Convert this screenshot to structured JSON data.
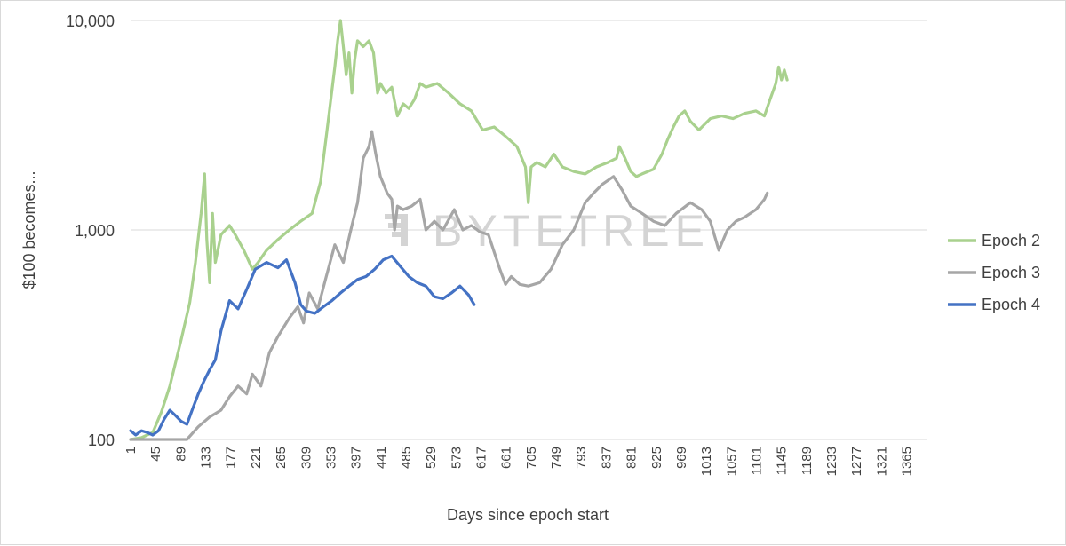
{
  "chart_data": {
    "type": "line",
    "title": "",
    "xlabel": "Days since epoch start",
    "ylabel": "$100 becomes...",
    "yscale": "log",
    "ylim": [
      100,
      10000
    ],
    "xlim": [
      1,
      1400
    ],
    "y_ticks": [
      {
        "value": 100,
        "label": "100"
      },
      {
        "value": 1000,
        "label": "1,000"
      },
      {
        "value": 10000,
        "label": "10,000"
      }
    ],
    "x_ticks": [
      "1",
      "45",
      "89",
      "133",
      "177",
      "221",
      "265",
      "309",
      "353",
      "397",
      "441",
      "485",
      "529",
      "573",
      "617",
      "661",
      "705",
      "749",
      "793",
      "837",
      "881",
      "925",
      "969",
      "1013",
      "1057",
      "1101",
      "1145",
      "1189",
      "1233",
      "1277",
      "1321",
      "1365"
    ],
    "legend_position": "right",
    "watermark": "BYTETREE",
    "series": [
      {
        "name": "Epoch 2",
        "color": "#a9d18e",
        "points": [
          [
            1,
            100
          ],
          [
            20,
            102
          ],
          [
            40,
            108
          ],
          [
            55,
            135
          ],
          [
            70,
            180
          ],
          [
            90,
            300
          ],
          [
            105,
            450
          ],
          [
            115,
            700
          ],
          [
            125,
            1200
          ],
          [
            131,
            1850
          ],
          [
            135,
            900
          ],
          [
            140,
            560
          ],
          [
            145,
            1200
          ],
          [
            150,
            700
          ],
          [
            160,
            950
          ],
          [
            175,
            1050
          ],
          [
            185,
            950
          ],
          [
            200,
            800
          ],
          [
            215,
            650
          ],
          [
            225,
            700
          ],
          [
            240,
            800
          ],
          [
            260,
            900
          ],
          [
            280,
            1000
          ],
          [
            300,
            1100
          ],
          [
            320,
            1200
          ],
          [
            335,
            1700
          ],
          [
            345,
            2800
          ],
          [
            352,
            4000
          ],
          [
            360,
            6000
          ],
          [
            365,
            8000
          ],
          [
            370,
            10000
          ],
          [
            375,
            7500
          ],
          [
            380,
            5500
          ],
          [
            385,
            7000
          ],
          [
            390,
            4500
          ],
          [
            395,
            6500
          ],
          [
            400,
            8000
          ],
          [
            410,
            7500
          ],
          [
            420,
            8000
          ],
          [
            428,
            7000
          ],
          [
            435,
            4500
          ],
          [
            440,
            5000
          ],
          [
            450,
            4500
          ],
          [
            460,
            4800
          ],
          [
            470,
            3500
          ],
          [
            480,
            4000
          ],
          [
            490,
            3800
          ],
          [
            500,
            4200
          ],
          [
            510,
            5000
          ],
          [
            520,
            4800
          ],
          [
            540,
            5000
          ],
          [
            560,
            4500
          ],
          [
            580,
            4000
          ],
          [
            600,
            3700
          ],
          [
            620,
            3000
          ],
          [
            640,
            3100
          ],
          [
            660,
            2800
          ],
          [
            680,
            2500
          ],
          [
            695,
            2000
          ],
          [
            700,
            1350
          ],
          [
            705,
            2000
          ],
          [
            715,
            2100
          ],
          [
            730,
            2000
          ],
          [
            745,
            2300
          ],
          [
            760,
            2000
          ],
          [
            780,
            1900
          ],
          [
            800,
            1850
          ],
          [
            820,
            2000
          ],
          [
            840,
            2100
          ],
          [
            855,
            2200
          ],
          [
            860,
            2500
          ],
          [
            870,
            2200
          ],
          [
            880,
            1900
          ],
          [
            890,
            1800
          ],
          [
            900,
            1850
          ],
          [
            920,
            1950
          ],
          [
            935,
            2300
          ],
          [
            945,
            2700
          ],
          [
            955,
            3100
          ],
          [
            965,
            3500
          ],
          [
            975,
            3700
          ],
          [
            985,
            3300
          ],
          [
            1000,
            3000
          ],
          [
            1020,
            3400
          ],
          [
            1040,
            3500
          ],
          [
            1060,
            3400
          ],
          [
            1080,
            3600
          ],
          [
            1100,
            3700
          ],
          [
            1115,
            3500
          ],
          [
            1125,
            4200
          ],
          [
            1135,
            5000
          ],
          [
            1140,
            6000
          ],
          [
            1145,
            5200
          ],
          [
            1150,
            5800
          ],
          [
            1155,
            5200
          ]
        ]
      },
      {
        "name": "Epoch 3",
        "color": "#a6a6a6",
        "points": [
          [
            1,
            100
          ],
          [
            100,
            100
          ],
          [
            120,
            115
          ],
          [
            140,
            128
          ],
          [
            160,
            138
          ],
          [
            175,
            160
          ],
          [
            190,
            180
          ],
          [
            205,
            165
          ],
          [
            215,
            205
          ],
          [
            230,
            180
          ],
          [
            245,
            260
          ],
          [
            260,
            310
          ],
          [
            280,
            380
          ],
          [
            295,
            430
          ],
          [
            305,
            360
          ],
          [
            315,
            500
          ],
          [
            330,
            420
          ],
          [
            345,
            600
          ],
          [
            360,
            850
          ],
          [
            375,
            700
          ],
          [
            390,
            1050
          ],
          [
            400,
            1350
          ],
          [
            410,
            2200
          ],
          [
            420,
            2500
          ],
          [
            425,
            2950
          ],
          [
            432,
            2300
          ],
          [
            440,
            1800
          ],
          [
            452,
            1500
          ],
          [
            460,
            1400
          ],
          [
            465,
            1000
          ],
          [
            470,
            1300
          ],
          [
            480,
            1250
          ],
          [
            495,
            1300
          ],
          [
            510,
            1400
          ],
          [
            520,
            1000
          ],
          [
            535,
            1100
          ],
          [
            550,
            1000
          ],
          [
            570,
            1250
          ],
          [
            585,
            1000
          ],
          [
            600,
            1050
          ],
          [
            615,
            980
          ],
          [
            630,
            950
          ],
          [
            650,
            650
          ],
          [
            660,
            550
          ],
          [
            670,
            600
          ],
          [
            685,
            550
          ],
          [
            700,
            540
          ],
          [
            720,
            560
          ],
          [
            740,
            650
          ],
          [
            760,
            850
          ],
          [
            780,
            1000
          ],
          [
            800,
            1350
          ],
          [
            815,
            1500
          ],
          [
            830,
            1650
          ],
          [
            850,
            1800
          ],
          [
            865,
            1550
          ],
          [
            880,
            1300
          ],
          [
            900,
            1200
          ],
          [
            920,
            1100
          ],
          [
            940,
            1050
          ],
          [
            960,
            1200
          ],
          [
            985,
            1350
          ],
          [
            1005,
            1250
          ],
          [
            1020,
            1100
          ],
          [
            1035,
            800
          ],
          [
            1050,
            1000
          ],
          [
            1065,
            1100
          ],
          [
            1080,
            1150
          ],
          [
            1100,
            1250
          ],
          [
            1115,
            1400
          ],
          [
            1120,
            1500
          ]
        ]
      },
      {
        "name": "Epoch 4",
        "color": "#4472c4",
        "points": [
          [
            1,
            110
          ],
          [
            10,
            105
          ],
          [
            20,
            110
          ],
          [
            30,
            108
          ],
          [
            40,
            105
          ],
          [
            50,
            110
          ],
          [
            60,
            125
          ],
          [
            70,
            138
          ],
          [
            80,
            130
          ],
          [
            90,
            122
          ],
          [
            100,
            118
          ],
          [
            110,
            140
          ],
          [
            120,
            165
          ],
          [
            130,
            190
          ],
          [
            140,
            215
          ],
          [
            150,
            240
          ],
          [
            160,
            330
          ],
          [
            175,
            460
          ],
          [
            190,
            420
          ],
          [
            205,
            520
          ],
          [
            220,
            650
          ],
          [
            240,
            700
          ],
          [
            260,
            660
          ],
          [
            275,
            720
          ],
          [
            290,
            560
          ],
          [
            300,
            440
          ],
          [
            310,
            410
          ],
          [
            325,
            400
          ],
          [
            340,
            430
          ],
          [
            355,
            460
          ],
          [
            370,
            500
          ],
          [
            385,
            540
          ],
          [
            400,
            580
          ],
          [
            415,
            600
          ],
          [
            430,
            650
          ],
          [
            445,
            720
          ],
          [
            460,
            750
          ],
          [
            475,
            670
          ],
          [
            490,
            600
          ],
          [
            505,
            560
          ],
          [
            520,
            540
          ],
          [
            535,
            480
          ],
          [
            550,
            470
          ],
          [
            565,
            500
          ],
          [
            580,
            540
          ],
          [
            595,
            490
          ],
          [
            605,
            440
          ]
        ]
      }
    ]
  }
}
